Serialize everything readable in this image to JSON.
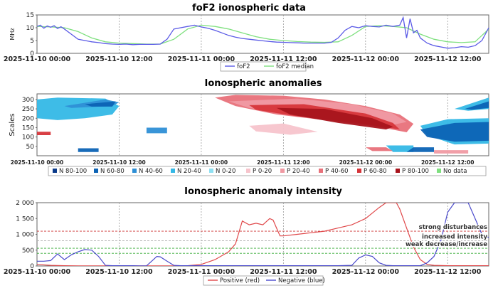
{
  "colors": {
    "fof2": "#5a5ae6",
    "fof2_median": "#7fe07f",
    "positive": "#e0484a",
    "negative": "#4a4acc",
    "n_palette": [
      "#0a3a8a",
      "#0c63b5",
      "#2e8fd6",
      "#34b8e6",
      "#8fe0f2"
    ],
    "p_palette": [
      "#f7c4cc",
      "#f09aa3",
      "#e8717a",
      "#d6353a",
      "#a8141c"
    ],
    "grid": "#9a9a9a"
  },
  "chart_data": [
    {
      "type": "line",
      "title": "foF2 ionospheric data",
      "ylabel": "MHz",
      "ylim": [
        0,
        15
      ],
      "yticks": [
        "0",
        "5",
        "10",
        "15"
      ],
      "xlim_hours": [
        0,
        66
      ],
      "xtick_labels": [
        "2025-11-10 00:00",
        "2025-11-10 12:00",
        "2025-11-11 00:00",
        "2025-11-11 12:00",
        "2025-11-12 00:00",
        "2025-11-12 12:00"
      ],
      "xtick_hours": [
        0,
        12,
        24,
        36,
        48,
        60
      ],
      "legend": [
        "foF2",
        "foF2 median"
      ],
      "series": [
        {
          "name": "foF2",
          "x": [
            0,
            0.5,
            1,
            1.5,
            2,
            2.5,
            3,
            3.5,
            4,
            5,
            6,
            7,
            8,
            9,
            10,
            11,
            12,
            13,
            14,
            15,
            16,
            17,
            18,
            19,
            20,
            21,
            22,
            23,
            24,
            25,
            26,
            27,
            28,
            29,
            30,
            31,
            32,
            33,
            34,
            35,
            36,
            37,
            38,
            39,
            40,
            41,
            42,
            43,
            44,
            45,
            46,
            47,
            48,
            49,
            50,
            51,
            52,
            53,
            53.5,
            54,
            54.5,
            55,
            55.5,
            56,
            57,
            58,
            59,
            60,
            61,
            62,
            63,
            64,
            65,
            66
          ],
          "values": [
            10.5,
            11,
            9.8,
            10.7,
            10.2,
            10.8,
            9.7,
            10.4,
            9.5,
            7.5,
            5.5,
            5,
            4.5,
            4.2,
            3.8,
            3.6,
            3.5,
            3.6,
            3.4,
            3.5,
            3.5,
            3.5,
            3.6,
            5.5,
            9.5,
            10,
            10.5,
            11,
            10.3,
            9.8,
            9,
            8,
            7,
            6.3,
            5.8,
            5.5,
            5.2,
            4.9,
            4.6,
            4.4,
            4.3,
            4.2,
            4.1,
            4,
            4,
            4,
            4,
            4.3,
            6,
            9,
            10.5,
            10,
            10.8,
            10.5,
            10.3,
            11,
            10.5,
            11,
            14,
            6,
            13.5,
            8,
            9,
            6,
            4,
            3,
            2.5,
            2,
            2.2,
            2.6,
            2.4,
            3,
            5,
            10
          ]
        },
        {
          "name": "foF2 median",
          "x": [
            0,
            2,
            4,
            6,
            8,
            10,
            12,
            14,
            16,
            18,
            20,
            22,
            24,
            26,
            28,
            30,
            32,
            34,
            36,
            38,
            40,
            42,
            44,
            46,
            48,
            50,
            52,
            54,
            56,
            58,
            60,
            62,
            64,
            66
          ],
          "values": [
            10.5,
            10.3,
            10,
            8.5,
            6,
            4.5,
            4,
            3.8,
            3.6,
            3.6,
            5.5,
            9.5,
            11,
            10.5,
            9.5,
            8,
            6.5,
            5.5,
            5,
            4.6,
            4.4,
            4.3,
            4.5,
            7,
            10.5,
            10.8,
            10.5,
            10,
            7.5,
            5.5,
            4.5,
            4.2,
            4.5,
            9.5
          ]
        }
      ]
    },
    {
      "type": "heatmap",
      "title": "Ionospheric anomalies",
      "ylabel": "Scales",
      "ylim": [
        0,
        330
      ],
      "yticks": [
        "50",
        "100",
        "150",
        "200",
        "250",
        "300"
      ],
      "xlim_hours": [
        0,
        66
      ],
      "xtick_labels": [
        "2025-11-10 00:00",
        "2025-11-10 12:00",
        "2025-11-11 00:00",
        "2025-11-11 12:00",
        "2025-11-12 00:00",
        "2025-11-12 12:00"
      ],
      "xtick_hours": [
        0,
        12,
        24,
        36,
        48,
        60
      ],
      "legend": [
        "N 80-100",
        "N 60-80",
        "N 40-60",
        "N 20-40",
        "N 0-20",
        "P 0-20",
        "P 20-40",
        "P 40-60",
        "P 60-80",
        "P 80-100",
        "No data"
      ],
      "regions": [
        {
          "category": "N 20-40",
          "t": [
            0,
            0,
            3,
            10,
            12,
            11,
            7,
            3
          ],
          "s": [
            200,
            300,
            310,
            305,
            265,
            220,
            200,
            190
          ]
        },
        {
          "category": "N 40-60",
          "t": [
            4,
            10,
            12,
            11,
            5
          ],
          "s": [
            265,
            300,
            285,
            265,
            255
          ]
        },
        {
          "category": "N 60-80",
          "t": [
            7,
            11.5,
            11,
            8
          ],
          "s": [
            275,
            290,
            262,
            262
          ]
        },
        {
          "category": "N 40-60",
          "t": [
            16,
            19,
            19,
            16
          ],
          "s": [
            120,
            120,
            150,
            150
          ]
        },
        {
          "category": "P 40-60",
          "t": [
            26,
            29,
            36,
            42,
            48,
            53,
            55,
            54,
            49,
            42,
            35,
            29
          ],
          "s": [
            310,
            325,
            320,
            300,
            265,
            220,
            170,
            125,
            160,
            190,
            220,
            265
          ]
        },
        {
          "category": "P 20-40",
          "t": [
            28,
            38,
            46,
            52,
            54,
            52,
            45,
            38,
            31
          ],
          "s": [
            290,
            305,
            275,
            225,
            180,
            165,
            195,
            220,
            255
          ]
        },
        {
          "category": "P 60-80",
          "t": [
            31,
            39,
            48,
            52,
            53,
            47,
            38,
            32
          ],
          "s": [
            270,
            275,
            225,
            175,
            140,
            175,
            210,
            245
          ]
        },
        {
          "category": "P 80-100",
          "t": [
            35,
            42,
            49,
            52,
            51,
            44,
            37
          ],
          "s": [
            255,
            250,
            200,
            155,
            140,
            175,
            220
          ]
        },
        {
          "category": "P 0-20",
          "t": [
            31,
            36,
            41,
            37,
            32
          ],
          "s": [
            160,
            172,
            128,
            112,
            130
          ]
        },
        {
          "category": "N 20-40",
          "t": [
            56,
            60,
            66,
            66,
            61,
            57
          ],
          "s": [
            160,
            195,
            200,
            65,
            60,
            110
          ]
        },
        {
          "category": "N 60-80",
          "t": [
            56,
            61,
            66,
            66,
            61,
            57
          ],
          "s": [
            140,
            175,
            180,
            80,
            75,
            100
          ]
        },
        {
          "category": "N 20-40",
          "t": [
            61,
            66,
            66,
            63
          ],
          "s": [
            250,
            310,
            250,
            240
          ]
        },
        {
          "category": "N 60-80",
          "t": [
            62.5,
            66,
            66,
            63.5
          ],
          "s": [
            250,
            290,
            255,
            245
          ]
        },
        {
          "category": "P 60-80",
          "t": [
            0,
            2,
            2,
            0
          ],
          "s": [
            128,
            128,
            110,
            110
          ]
        },
        {
          "category": "N 60-80",
          "t": [
            6,
            9,
            9,
            6
          ],
          "s": [
            20,
            20,
            40,
            40
          ]
        },
        {
          "category": "N 20-40",
          "t": [
            52,
            55,
            55,
            51
          ],
          "s": [
            20,
            20,
            55,
            55
          ]
        },
        {
          "category": "N 60-80",
          "t": [
            54,
            58,
            58,
            55
          ],
          "s": [
            20,
            20,
            45,
            45
          ]
        },
        {
          "category": "P 40-60",
          "t": [
            49,
            52,
            51,
            48
          ],
          "s": [
            25,
            25,
            45,
            45
          ]
        },
        {
          "category": "P 20-40",
          "t": [
            58,
            63,
            63,
            58
          ],
          "s": [
            12,
            12,
            30,
            30
          ]
        }
      ]
    },
    {
      "type": "line",
      "title": "Ionospheric anomaly intensity",
      "ylim": [
        0,
        2000
      ],
      "yticks": [
        "0",
        "500",
        "1 000",
        "1 500",
        "2 000"
      ],
      "xlim_hours": [
        0,
        66
      ],
      "xtick_labels": [
        "2025-11-10 00:00",
        "2025-11-10 12:00",
        "2025-11-11 00:00",
        "2025-11-11 12:00",
        "2025-11-12 00:00",
        "2025-11-12 12:00"
      ],
      "xtick_hours": [
        0,
        12,
        24,
        36,
        48,
        60
      ],
      "thresholds": [
        {
          "value": 1100,
          "label": "strong disturbances",
          "color": "#cc3333"
        },
        {
          "value": 800,
          "label": "increased intensity",
          "color": "#b0b0b0"
        },
        {
          "value": 560,
          "label": "weak decrease/increase",
          "color": "#33aa33"
        },
        {
          "value": 400,
          "label": "",
          "color": "#33aa33"
        }
      ],
      "legend": [
        "Positive (red)",
        "Negative (blue)"
      ],
      "series": [
        {
          "name": "Positive (red)",
          "x": [
            0,
            2,
            4,
            6,
            8,
            10,
            12,
            14,
            16,
            18,
            20,
            22,
            24,
            26,
            28,
            29,
            30,
            31,
            32,
            33,
            34,
            34.5,
            35,
            35.5,
            36,
            38,
            40,
            42,
            44,
            46,
            48,
            50,
            51,
            52,
            52.5,
            53,
            54,
            55,
            56,
            57,
            58,
            60,
            62,
            64,
            66
          ],
          "values": [
            50,
            20,
            10,
            5,
            5,
            5,
            5,
            5,
            5,
            5,
            5,
            10,
            50,
            200,
            450,
            700,
            1420,
            1300,
            1350,
            1300,
            1500,
            1450,
            1200,
            950,
            950,
            1000,
            1050,
            1100,
            1200,
            1300,
            1500,
            1850,
            2000,
            2000,
            2000,
            1800,
            1200,
            600,
            200,
            50,
            20,
            10,
            10,
            10,
            10
          ]
        },
        {
          "name": "Negative (blue)",
          "x": [
            0,
            1,
            2,
            3,
            4,
            5,
            6,
            7,
            8,
            9,
            10,
            11,
            12,
            13,
            14,
            15,
            16,
            17,
            17.5,
            18,
            19,
            20,
            21,
            22,
            24,
            26,
            28,
            30,
            32,
            34,
            36,
            38,
            40,
            42,
            44,
            46,
            47,
            48,
            49,
            50,
            51,
            52,
            53,
            54,
            55,
            56,
            57,
            58,
            59,
            60,
            61,
            62,
            63,
            64,
            65,
            66
          ],
          "values": [
            150,
            150,
            170,
            380,
            200,
            350,
            450,
            520,
            500,
            300,
            20,
            10,
            10,
            10,
            10,
            5,
            5,
            200,
            300,
            290,
            150,
            20,
            10,
            10,
            10,
            10,
            10,
            10,
            10,
            10,
            10,
            10,
            10,
            10,
            10,
            20,
            250,
            350,
            300,
            100,
            20,
            10,
            10,
            10,
            10,
            10,
            100,
            300,
            800,
            1700,
            2000,
            2000,
            2000,
            1500,
            1000,
            900
          ]
        }
      ]
    }
  ]
}
